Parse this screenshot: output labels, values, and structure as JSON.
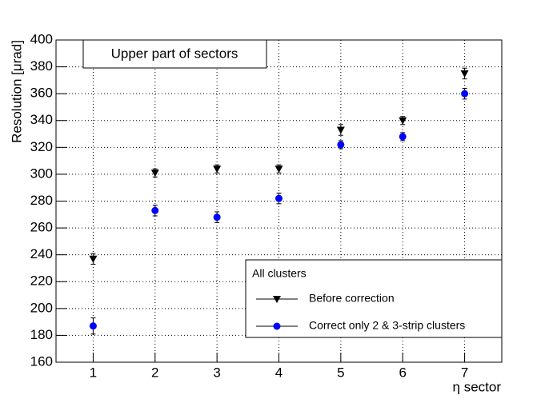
{
  "chart_data": {
    "type": "scatter",
    "title": "Upper part of sectors",
    "x_label": "η sector",
    "y_label": "Resolution [μrad]",
    "legend_title": "All clusters",
    "x": [
      1,
      2,
      3,
      4,
      5,
      6,
      7
    ],
    "series": [
      {
        "name": "Before correction",
        "color": "#000000",
        "marker": "triangle-down",
        "values": [
          237,
          301,
          304,
          304,
          333,
          340,
          375
        ],
        "errors": [
          4,
          3,
          3,
          3,
          4,
          3,
          4
        ]
      },
      {
        "name": "Correct only 2 & 3-strip clusters",
        "color": "#0000ff",
        "marker": "circle",
        "values": [
          187,
          273,
          268,
          282,
          322,
          328,
          360
        ],
        "errors": [
          6,
          4,
          4,
          4,
          3,
          3,
          4
        ]
      }
    ],
    "xlim": [
      0.4,
      7.6
    ],
    "xticks": [
      1,
      2,
      3,
      4,
      5,
      6,
      7
    ],
    "ylim": [
      160,
      400
    ],
    "yticks": [
      160,
      180,
      200,
      220,
      240,
      260,
      280,
      300,
      320,
      340,
      360,
      380,
      400
    ],
    "grid": true
  }
}
